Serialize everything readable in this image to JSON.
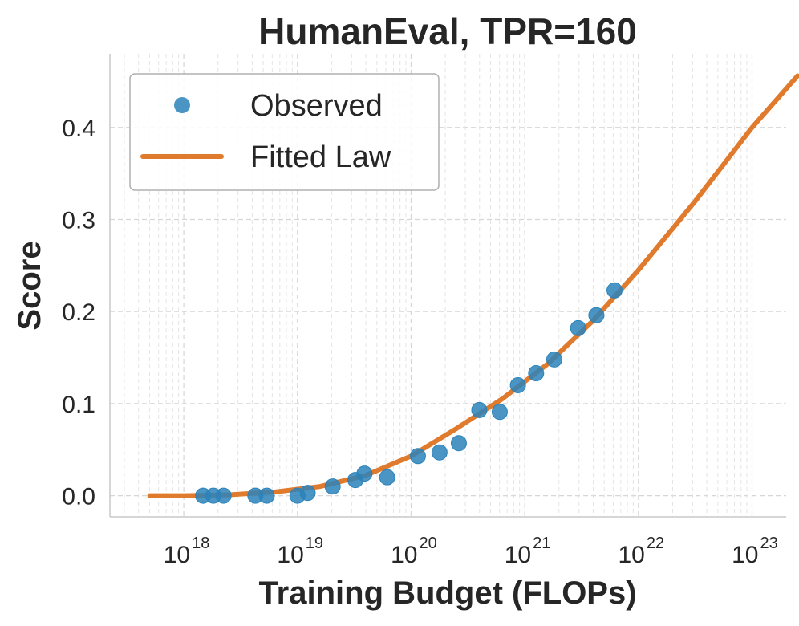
{
  "chart_data": {
    "type": "scatter",
    "title": "HumanEval, TPR=160",
    "xlabel": "Training Budget (FLOPs)",
    "ylabel": "Score",
    "xscale": "log",
    "xlim_log10": [
      17.35,
      23.3
    ],
    "ylim": [
      -0.023,
      0.48
    ],
    "grid": true,
    "legend_position": "upper-left",
    "x_ticks": [
      {
        "base": "10",
        "exp": "18",
        "log10": 18
      },
      {
        "base": "10",
        "exp": "19",
        "log10": 19
      },
      {
        "base": "10",
        "exp": "20",
        "log10": 20
      },
      {
        "base": "10",
        "exp": "21",
        "log10": 21
      },
      {
        "base": "10",
        "exp": "22",
        "log10": 22
      },
      {
        "base": "10",
        "exp": "23",
        "log10": 23
      }
    ],
    "y_ticks": [
      {
        "label": "0.0",
        "value": 0.0
      },
      {
        "label": "0.1",
        "value": 0.1
      },
      {
        "label": "0.2",
        "value": 0.2
      },
      {
        "label": "0.3",
        "value": 0.3
      },
      {
        "label": "0.4",
        "value": 0.4
      }
    ],
    "series": [
      {
        "name": "Observed",
        "kind": "scatter",
        "color": "#2b83ba",
        "points": [
          {
            "x_log10": 18.17,
            "y": 0.0
          },
          {
            "x_log10": 18.26,
            "y": 0.0
          },
          {
            "x_log10": 18.35,
            "y": 0.0
          },
          {
            "x_log10": 18.63,
            "y": 0.0
          },
          {
            "x_log10": 18.73,
            "y": 0.0
          },
          {
            "x_log10": 19.0,
            "y": 0.0
          },
          {
            "x_log10": 19.09,
            "y": 0.003
          },
          {
            "x_log10": 19.31,
            "y": 0.01
          },
          {
            "x_log10": 19.51,
            "y": 0.017
          },
          {
            "x_log10": 19.59,
            "y": 0.024
          },
          {
            "x_log10": 19.79,
            "y": 0.02
          },
          {
            "x_log10": 20.06,
            "y": 0.043
          },
          {
            "x_log10": 20.25,
            "y": 0.047
          },
          {
            "x_log10": 20.42,
            "y": 0.057
          },
          {
            "x_log10": 20.6,
            "y": 0.093
          },
          {
            "x_log10": 20.78,
            "y": 0.091
          },
          {
            "x_log10": 20.94,
            "y": 0.12
          },
          {
            "x_log10": 21.1,
            "y": 0.133
          },
          {
            "x_log10": 21.26,
            "y": 0.148
          },
          {
            "x_log10": 21.47,
            "y": 0.182
          },
          {
            "x_log10": 21.63,
            "y": 0.196
          },
          {
            "x_log10": 21.79,
            "y": 0.223
          }
        ]
      },
      {
        "name": "Fitted Law",
        "kind": "line",
        "color": "#e07b2e",
        "points": [
          {
            "x_log10": 17.7,
            "y": 0.0
          },
          {
            "x_log10": 18.0,
            "y": 0.0
          },
          {
            "x_log10": 18.4,
            "y": 0.001
          },
          {
            "x_log10": 18.8,
            "y": 0.004
          },
          {
            "x_log10": 19.2,
            "y": 0.01
          },
          {
            "x_log10": 19.6,
            "y": 0.022
          },
          {
            "x_log10": 20.0,
            "y": 0.043
          },
          {
            "x_log10": 20.4,
            "y": 0.073
          },
          {
            "x_log10": 20.8,
            "y": 0.105
          },
          {
            "x_log10": 21.2,
            "y": 0.143
          },
          {
            "x_log10": 21.6,
            "y": 0.19
          },
          {
            "x_log10": 22.0,
            "y": 0.245
          },
          {
            "x_log10": 22.5,
            "y": 0.32
          },
          {
            "x_log10": 23.0,
            "y": 0.4
          },
          {
            "x_log10": 23.4,
            "y": 0.456
          }
        ]
      }
    ]
  }
}
